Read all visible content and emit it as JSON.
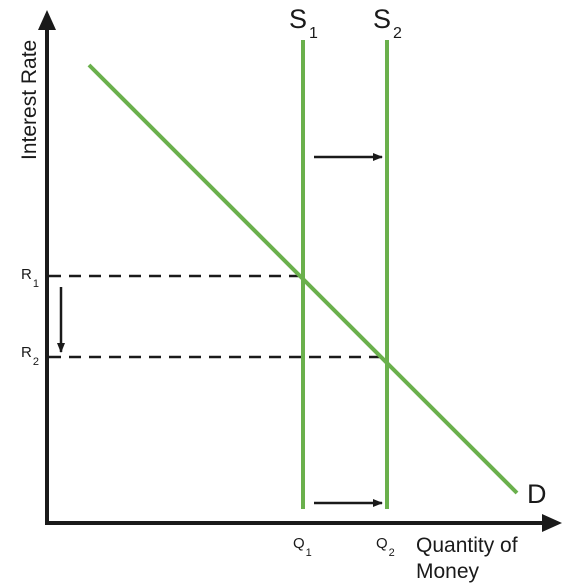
{
  "axes": {
    "y_label": "Interest Rate",
    "x_label_line1": "Quantity of",
    "x_label_line2": "Money"
  },
  "curves": {
    "supply_1": {
      "label": "S",
      "subscript": "1"
    },
    "supply_2": {
      "label": "S",
      "subscript": "2"
    },
    "demand": {
      "label": "D"
    }
  },
  "ticks": {
    "rate_1": {
      "label": "R",
      "subscript": "1"
    },
    "rate_2": {
      "label": "R",
      "subscript": "2"
    },
    "quantity_1": {
      "label": "Q",
      "subscript": "1"
    },
    "quantity_2": {
      "label": "Q",
      "subscript": "2"
    }
  },
  "colors": {
    "curve": "#6ab04c",
    "axis": "#1a1a1a",
    "guide": "#1a1a1a"
  }
}
